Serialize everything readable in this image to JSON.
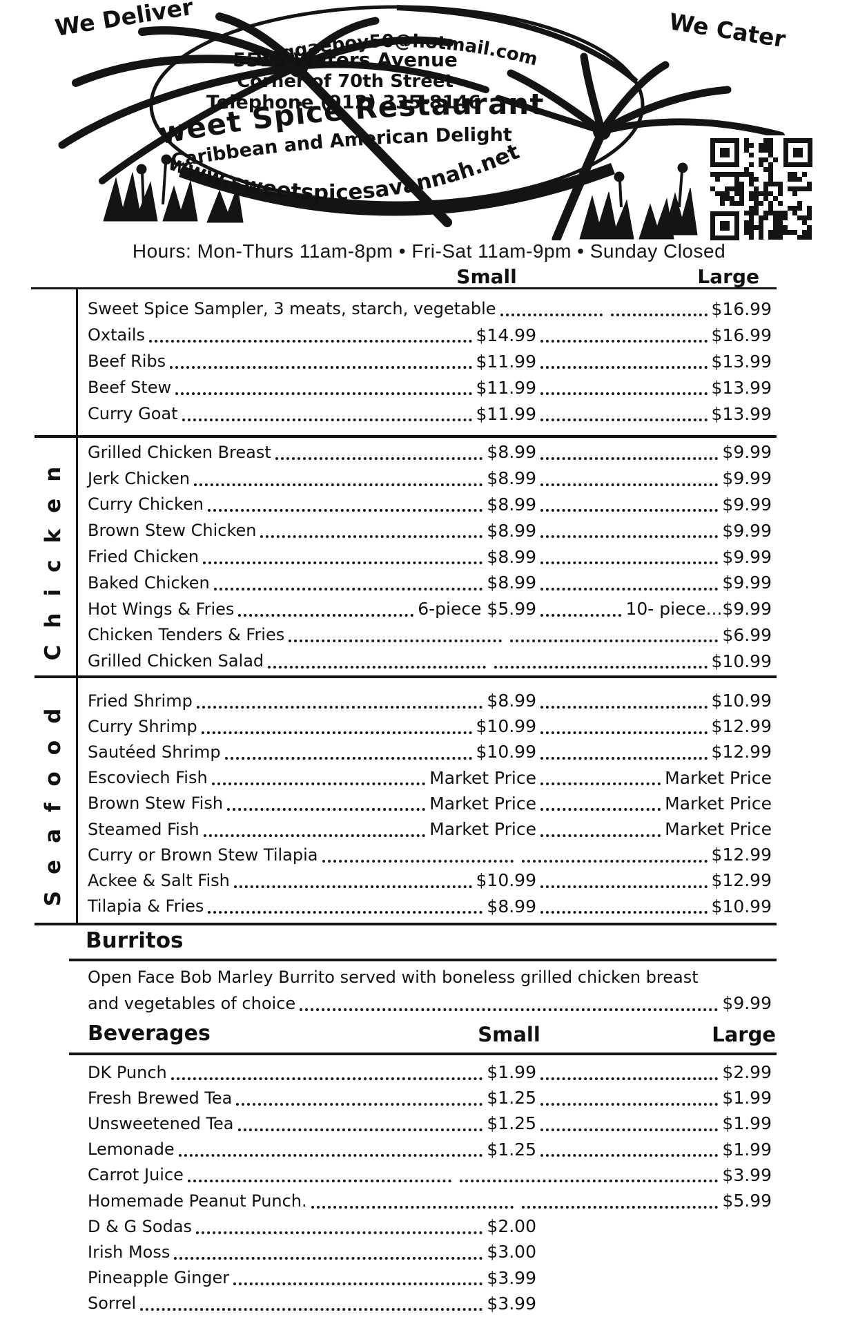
{
  "colors": {
    "ink": "#111111",
    "paper": "#ffffff"
  },
  "header": {
    "we_deliver": "We Deliver",
    "we_cater": "We Cater",
    "email": "Reggaeboy50@hotmail.com",
    "address1": "5515 Waters Avenue",
    "address2": "Corner of 70th Street",
    "phone": "Telephone (912) 335-8146",
    "restaurant_name": "Sweet Spice Restaurant",
    "tagline": "Caribbean and American Delight",
    "website": "www.sweetspicesavannah.net",
    "hours": "Hours: Mon-Thurs 11am-8pm • Fri-Sat 11am-9pm • Sunday Closed"
  },
  "columns": {
    "small": "Small",
    "large": "Large"
  },
  "sections": [
    {
      "label": "",
      "items": [
        {
          "name": "Sweet Spice Sampler, 3 meats, starch, vegetable",
          "small": "",
          "large": "$16.99"
        },
        {
          "name": "Oxtails",
          "small": "$14.99",
          "large": "$16.99"
        },
        {
          "name": "Beef Ribs",
          "small": "$11.99",
          "large": "$13.99"
        },
        {
          "name": "Beef Stew",
          "small": "$11.99",
          "large": "$13.99"
        },
        {
          "name": "Curry Goat",
          "small": "$11.99",
          "large": "$13.99"
        }
      ]
    },
    {
      "label": "Chicken",
      "items": [
        {
          "name": "Grilled Chicken Breast",
          "small": "$8.99",
          "large": "$9.99"
        },
        {
          "name": "Jerk Chicken",
          "small": "$8.99",
          "large": "$9.99"
        },
        {
          "name": "Curry Chicken",
          "small": "$8.99",
          "large": "$9.99"
        },
        {
          "name": "Brown Stew Chicken",
          "small": "$8.99",
          "large": "$9.99"
        },
        {
          "name": "Fried Chicken",
          "small": "$8.99",
          "large": "$9.99"
        },
        {
          "name": "Baked Chicken",
          "small": "$8.99",
          "large": "$9.99"
        },
        {
          "name": "Hot Wings & Fries",
          "small": "6-piece $5.99",
          "large": "10- piece...$9.99"
        },
        {
          "name": "Chicken Tenders & Fries",
          "small": "",
          "large": "$6.99"
        },
        {
          "name": "Grilled Chicken Salad",
          "small": "",
          "large": "$10.99"
        }
      ]
    },
    {
      "label": "Seafood",
      "items": [
        {
          "name": "Fried Shrimp",
          "small": "$8.99",
          "large": "$10.99"
        },
        {
          "name": "Curry Shrimp",
          "small": "$10.99",
          "large": "$12.99"
        },
        {
          "name": "Sautéed Shrimp",
          "small": "$10.99",
          "large": "$12.99"
        },
        {
          "name": "Escoviech Fish",
          "small": "Market Price",
          "large": "Market Price"
        },
        {
          "name": "Brown Stew Fish",
          "small": "Market Price",
          "large": "Market Price"
        },
        {
          "name": "Steamed Fish",
          "small": "Market Price",
          "large": "Market Price"
        },
        {
          "name": "Curry or Brown Stew Tilapia",
          "small": "",
          "large": "$12.99"
        },
        {
          "name": "Ackee & Salt Fish",
          "small": "$10.99",
          "large": "$12.99"
        },
        {
          "name": "Tilapia & Fries",
          "small": "$8.99",
          "large": "$10.99"
        }
      ]
    }
  ],
  "burritos": {
    "title": "Burritos",
    "line1": "Open Face Bob Marley Burrito served with boneless grilled chicken breast",
    "line2": "and vegetables of choice",
    "price": "$9.99"
  },
  "beverages": {
    "title": "Beverages",
    "col_small": "Small",
    "col_large": "Large",
    "items": [
      {
        "name": "DK Punch",
        "small": "$1.99",
        "large": "$2.99"
      },
      {
        "name": "Fresh Brewed Tea",
        "small": "$1.25",
        "large": "$1.99"
      },
      {
        "name": "Unsweetened Tea",
        "small": "$1.25",
        "large": "$1.99"
      },
      {
        "name": "Lemonade",
        "small": "$1.25",
        "large": "$1.99"
      },
      {
        "name": "Carrot Juice",
        "small": "",
        "large": "$3.99"
      },
      {
        "name": "Homemade Peanut Punch.",
        "small": "",
        "large": "$5.99"
      },
      {
        "name": "D & G Sodas",
        "small": "$2.00",
        "large": ""
      },
      {
        "name": "Irish Moss",
        "small": "$3.00",
        "large": ""
      },
      {
        "name": "Pineapple Ginger",
        "small": "$3.99",
        "large": ""
      },
      {
        "name": "Sorrel",
        "small": "$3.99",
        "large": ""
      }
    ]
  }
}
